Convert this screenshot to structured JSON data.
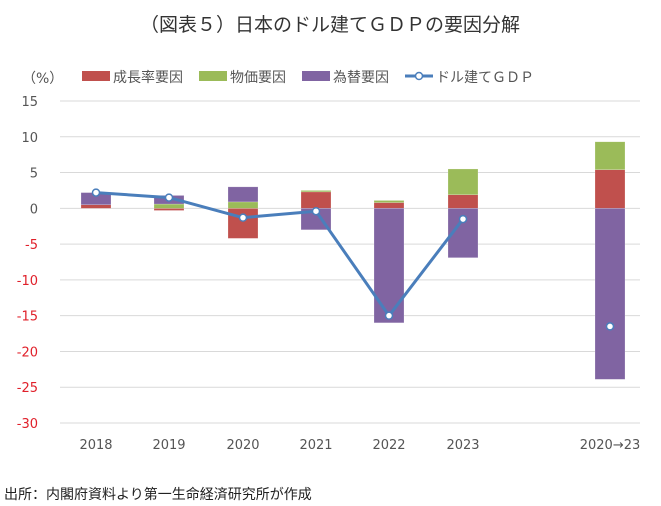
{
  "chart_data": {
    "type": "bar",
    "stacked": true,
    "title": "（図表５）日本のドル建てＧＤＰの要因分解",
    "ylabel": "（%）",
    "ylim": [
      -30,
      15
    ],
    "yticks": [
      15,
      10,
      5,
      0,
      -5,
      -10,
      -15,
      -20,
      -25,
      -30
    ],
    "grid": true,
    "legend_position": "top",
    "categories": [
      "2018",
      "2019",
      "2020",
      "2021",
      "2022",
      "2023",
      "2020→23"
    ],
    "series": [
      {
        "name": "成長率要因",
        "type": "bar",
        "color": "#c0504d",
        "values": [
          0.5,
          -0.3,
          -4.2,
          2.3,
          0.8,
          1.9,
          5.4
        ]
      },
      {
        "name": "物価要因",
        "type": "bar",
        "color": "#9bbb59",
        "values": [
          0.0,
          0.6,
          0.9,
          0.2,
          0.3,
          3.6,
          3.9
        ]
      },
      {
        "name": "為替要因",
        "type": "bar",
        "color": "#8064a2",
        "values": [
          1.7,
          1.2,
          2.1,
          -3.0,
          -16.0,
          -6.9,
          -23.9
        ]
      },
      {
        "name": "ドル建てＧＤＰ",
        "type": "line",
        "color": "#4a7ebb",
        "values": [
          2.2,
          1.5,
          -1.3,
          -0.4,
          -15.0,
          -1.5,
          -16.5
        ],
        "connected_through": "2023"
      }
    ],
    "negative_tick_color": "#e0202a"
  },
  "source": "出所：内閣府資料より第一生命経済研究所が作成"
}
